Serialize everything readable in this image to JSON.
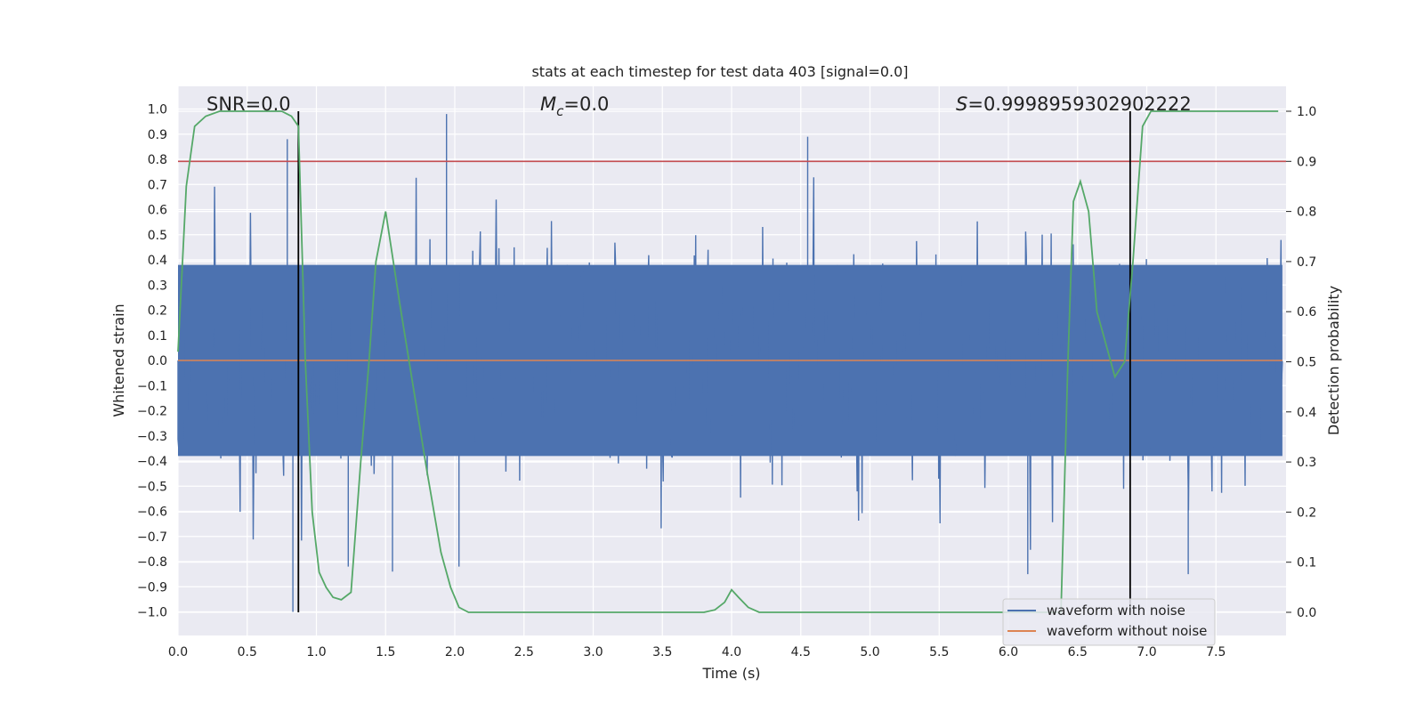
{
  "chart_data": {
    "type": "line",
    "title": "stats at each timestep for test data 403 [signal=0.0]",
    "xlabel": "Time (s)",
    "ylabel": "Whitened strain",
    "y2label": "Detection probability",
    "xlim": [
      0.0,
      8.0
    ],
    "ylim": [
      -1.1,
      1.1
    ],
    "y2lim": [
      -0.05,
      1.05
    ],
    "xticks": [
      "0.0",
      "0.5",
      "1.0",
      "1.5",
      "2.0",
      "2.5",
      "3.0",
      "3.5",
      "4.0",
      "4.5",
      "5.0",
      "5.5",
      "6.0",
      "6.5",
      "7.0",
      "7.5"
    ],
    "yticks": [
      "1.0",
      "0.9",
      "0.8",
      "0.7",
      "0.6",
      "0.5",
      "0.4",
      "0.3",
      "0.2",
      "0.1",
      "0.0",
      "−0.1",
      "−0.2",
      "−0.3",
      "−0.4",
      "−0.5",
      "−0.6",
      "−0.7",
      "−0.8",
      "−0.9",
      "−1.0"
    ],
    "y2ticks": [
      "1.0",
      "0.9",
      "0.8",
      "0.7",
      "0.6",
      "0.5",
      "0.4",
      "0.3",
      "0.2",
      "0.1",
      "0.0"
    ],
    "annotations": {
      "snr": "SNR=0.0",
      "mc_symbol": "M",
      "mc_sub": "c",
      "mc_value": "=0.0",
      "s_symbol": "S",
      "s_value": "=0.9998959302902222"
    },
    "threshold": {
      "axis": "right",
      "value": 0.9,
      "color": "#c44e52"
    },
    "markers_x": [
      0.87,
      6.88
    ],
    "series": [
      {
        "name": "waveform with noise",
        "color": "#4c72b0",
        "axis": "left",
        "kind": "noise",
        "envelope": 0.38,
        "spikes": [
          [
            0.79,
            0.88
          ],
          [
            0.83,
            -1.0
          ],
          [
            0.87,
            0.98
          ],
          [
            1.23,
            -0.82
          ],
          [
            1.55,
            -0.84
          ],
          [
            1.94,
            0.98
          ],
          [
            2.03,
            -0.82
          ],
          [
            4.55,
            0.89
          ],
          [
            6.14,
            -0.85
          ],
          [
            7.3,
            -0.85
          ]
        ]
      },
      {
        "name": "waveform without noise",
        "color": "#dd8452",
        "axis": "left",
        "values": 0.0
      },
      {
        "name": "detection probability",
        "color": "#55a868",
        "axis": "right",
        "x": [
          0.0,
          0.06,
          0.12,
          0.2,
          0.3,
          0.45,
          0.6,
          0.75,
          0.82,
          0.87,
          0.92,
          0.97,
          1.02,
          1.07,
          1.12,
          1.18,
          1.25,
          1.32,
          1.38,
          1.43,
          1.5,
          1.6,
          1.7,
          1.8,
          1.9,
          1.97,
          2.03,
          2.1,
          3.0,
          3.8,
          3.88,
          3.95,
          4.0,
          4.05,
          4.12,
          4.2,
          4.3,
          5.0,
          5.6,
          5.7,
          6.2,
          6.3,
          6.38,
          6.43,
          6.47,
          6.52,
          6.58,
          6.64,
          6.7,
          6.77,
          6.84,
          6.9,
          6.97,
          7.03,
          7.1,
          7.5,
          7.95
        ],
        "y": [
          0.52,
          0.85,
          0.97,
          0.99,
          1.0,
          1.0,
          1.0,
          1.0,
          0.99,
          0.97,
          0.5,
          0.2,
          0.08,
          0.05,
          0.03,
          0.025,
          0.04,
          0.3,
          0.5,
          0.7,
          0.8,
          0.62,
          0.45,
          0.28,
          0.12,
          0.05,
          0.01,
          0.0,
          0.0,
          0.0,
          0.005,
          0.02,
          0.045,
          0.03,
          0.01,
          0.0,
          0.0,
          0.0,
          0.0,
          0.0,
          0.0,
          0.0,
          0.0,
          0.5,
          0.82,
          0.86,
          0.8,
          0.6,
          0.54,
          0.47,
          0.5,
          0.7,
          0.97,
          1.0,
          1.0,
          1.0,
          1.0
        ]
      }
    ],
    "legend_position": "lower-right"
  }
}
